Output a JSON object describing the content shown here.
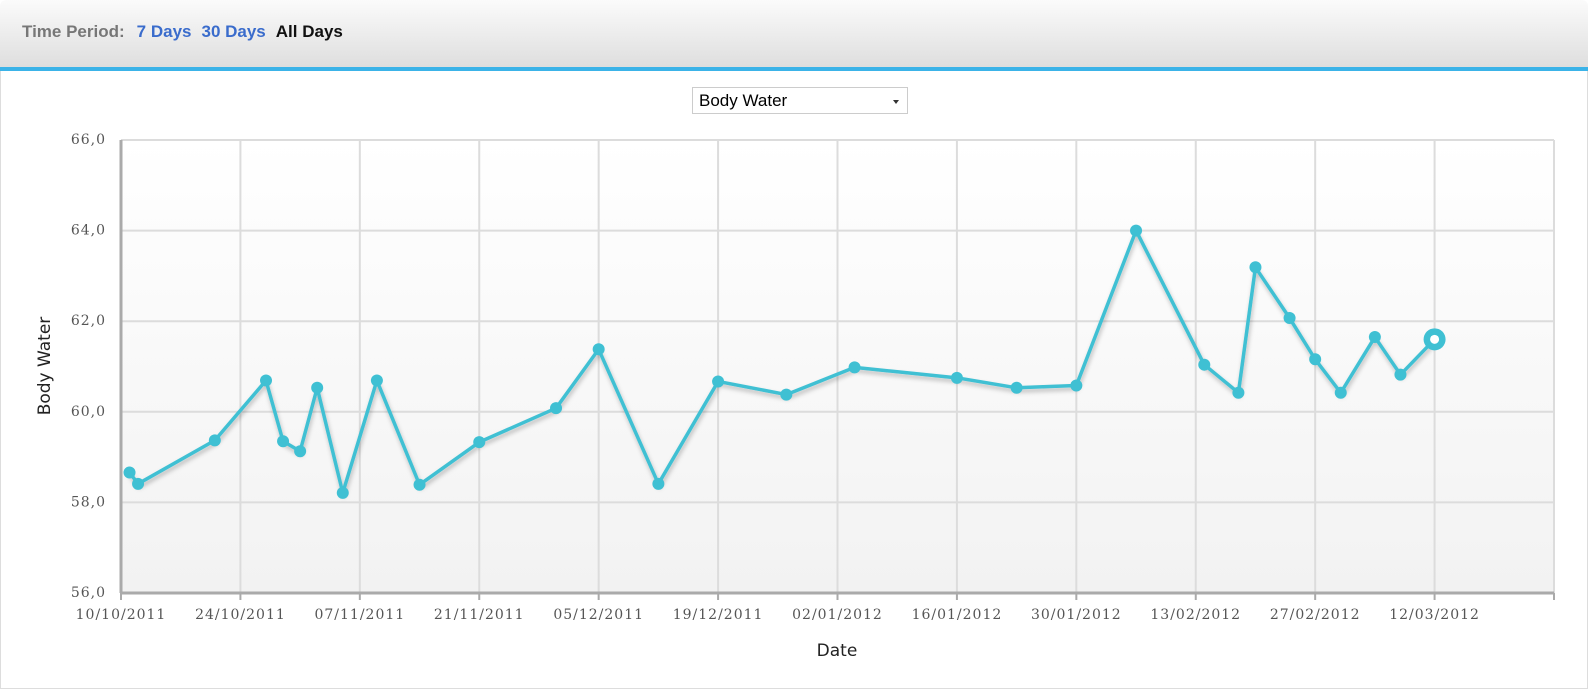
{
  "header": {
    "label": "Time Period:",
    "options": [
      "7 Days",
      "30 Days",
      "All Days"
    ],
    "selected": "All Days"
  },
  "metric_select": {
    "value": "Body Water"
  },
  "colors": {
    "series": "#3fc0d3",
    "accent": "#3bb3e8",
    "link": "#3a6ccc"
  },
  "chart_data": {
    "type": "line",
    "title": "",
    "xlabel": "Date",
    "ylabel": "Body Water",
    "ylim": [
      56,
      66
    ],
    "yticks": [
      "56,0",
      "58,0",
      "60,0",
      "62,0",
      "64,0",
      "66,0"
    ],
    "xlim": [
      "2011-10-10",
      "2012-03-26"
    ],
    "xticks": [
      "10/10/2011",
      "24/10/2011",
      "07/11/2011",
      "21/11/2011",
      "05/12/2011",
      "19/12/2011",
      "02/01/2012",
      "16/01/2012",
      "30/01/2012",
      "13/02/2012",
      "27/02/2012",
      "12/03/2012"
    ],
    "grid": true,
    "series": [
      {
        "name": "Body Water",
        "points": [
          [
            "2011-10-11",
            58.66
          ],
          [
            "2011-10-12",
            58.41
          ],
          [
            "2011-10-21",
            59.37
          ],
          [
            "2011-10-27",
            60.69
          ],
          [
            "2011-10-29",
            59.35
          ],
          [
            "2011-10-31",
            59.13
          ],
          [
            "2011-11-02",
            60.53
          ],
          [
            "2011-11-05",
            58.21
          ],
          [
            "2011-11-09",
            60.69
          ],
          [
            "2011-11-14",
            58.39
          ],
          [
            "2011-11-21",
            59.33
          ],
          [
            "2011-11-30",
            60.08
          ],
          [
            "2011-12-05",
            61.38
          ],
          [
            "2011-12-12",
            58.41
          ],
          [
            "2011-12-19",
            60.67
          ],
          [
            "2011-12-27",
            60.38
          ],
          [
            "2012-01-04",
            60.98
          ],
          [
            "2012-01-16",
            60.75
          ],
          [
            "2012-01-23",
            60.53
          ],
          [
            "2012-01-30",
            60.58
          ],
          [
            "2012-02-06",
            64.0
          ],
          [
            "2012-02-14",
            61.04
          ],
          [
            "2012-02-18",
            60.42
          ],
          [
            "2012-02-20",
            63.19
          ],
          [
            "2012-02-24",
            62.07
          ],
          [
            "2012-02-27",
            61.16
          ],
          [
            "2012-03-01",
            60.42
          ],
          [
            "2012-03-05",
            61.65
          ],
          [
            "2012-03-08",
            60.82
          ],
          [
            "2012-03-12",
            61.6
          ]
        ]
      }
    ]
  }
}
